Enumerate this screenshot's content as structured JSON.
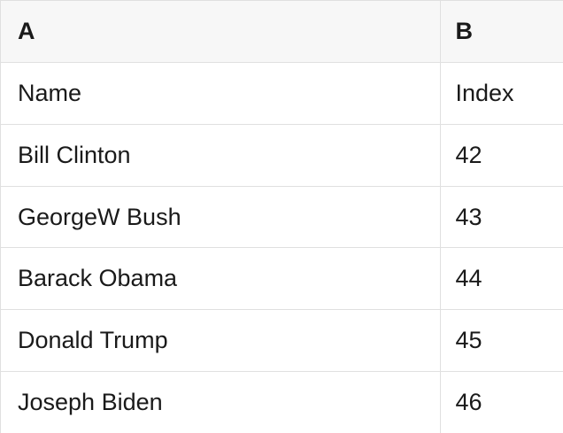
{
  "colors": {
    "header_bg": "#f7f7f7",
    "row_bg": "#ffffff",
    "border": "#e0e0e0",
    "text": "#1a1a1a"
  },
  "table": {
    "column_headers": [
      {
        "label": "A"
      },
      {
        "label": "B"
      }
    ],
    "rows": [
      {
        "cells": [
          "Name",
          "Index"
        ]
      },
      {
        "cells": [
          "Bill Clinton",
          "42"
        ]
      },
      {
        "cells": [
          "GeorgeW Bush",
          "43"
        ]
      },
      {
        "cells": [
          "Barack Obama",
          "44"
        ]
      },
      {
        "cells": [
          "Donald Trump",
          "45"
        ]
      },
      {
        "cells": [
          "Joseph Biden",
          "46"
        ]
      }
    ]
  }
}
